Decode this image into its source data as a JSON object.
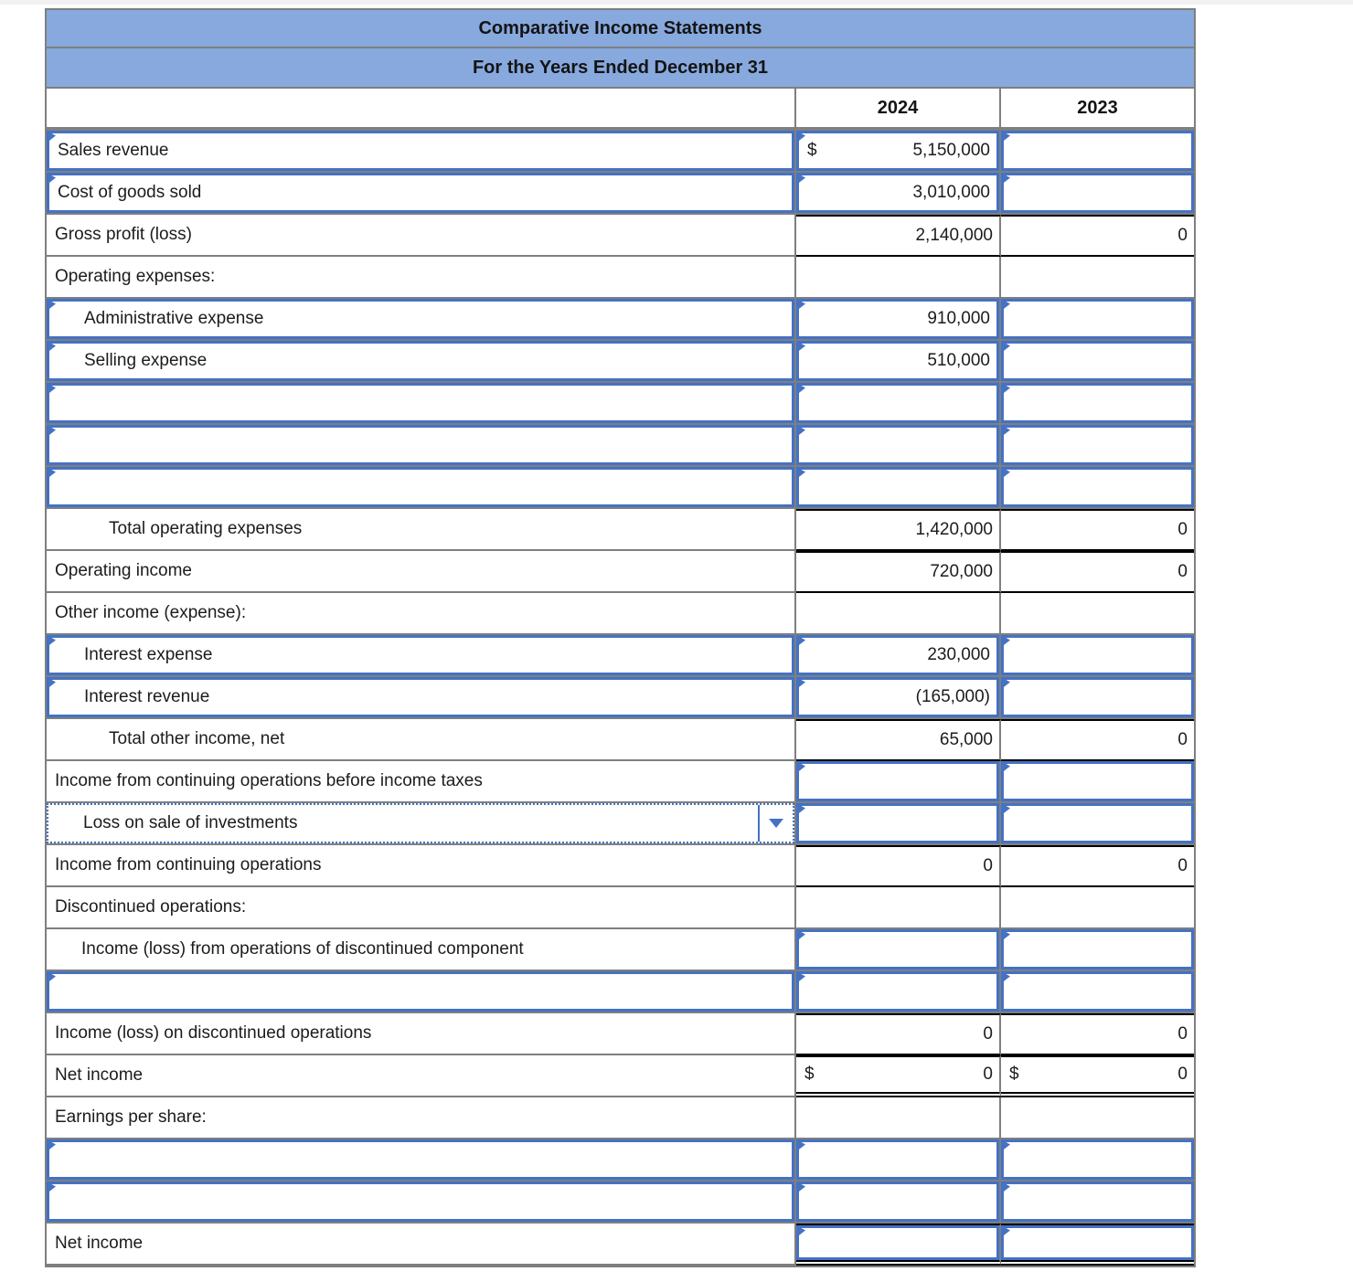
{
  "table": {
    "title": "Comparative Income Statements",
    "subtitle": "For the Years Ended December 31",
    "columns": [
      "2024",
      "2023"
    ],
    "rows": [
      {
        "label": "Sales revenue",
        "indent": 0,
        "lt": "input",
        "c24": {
          "t": "input",
          "v": "5,150,000",
          "d": "$"
        },
        "c23": {
          "t": "input",
          "v": ""
        }
      },
      {
        "label": "Cost of goods sold",
        "indent": 0,
        "lt": "input",
        "c24": {
          "t": "input",
          "v": "3,010,000"
        },
        "c23": {
          "t": "input",
          "v": ""
        }
      },
      {
        "label": "Gross profit (loss)",
        "indent": 0,
        "lt": "plain",
        "rule": "black",
        "c24": {
          "t": "calc",
          "v": "2,140,000"
        },
        "c23": {
          "t": "calc",
          "v": "0"
        }
      },
      {
        "label": "Operating expenses:",
        "indent": 0,
        "lt": "plain",
        "c24": {
          "t": "plain"
        },
        "c23": {
          "t": "plain"
        }
      },
      {
        "label": "Administrative expense",
        "indent": 1,
        "lt": "input",
        "c24": {
          "t": "input",
          "v": "910,000"
        },
        "c23": {
          "t": "input",
          "v": ""
        }
      },
      {
        "label": "Selling expense",
        "indent": 1,
        "lt": "input",
        "c24": {
          "t": "input",
          "v": "510,000"
        },
        "c23": {
          "t": "input",
          "v": ""
        }
      },
      {
        "label": "",
        "indent": 0,
        "lt": "input",
        "c24": {
          "t": "input",
          "v": ""
        },
        "c23": {
          "t": "input",
          "v": ""
        }
      },
      {
        "label": "",
        "indent": 0,
        "lt": "input",
        "c24": {
          "t": "input",
          "v": ""
        },
        "c23": {
          "t": "input",
          "v": ""
        }
      },
      {
        "label": "",
        "indent": 0,
        "lt": "input",
        "c24": {
          "t": "input",
          "v": ""
        },
        "c23": {
          "t": "input",
          "v": ""
        }
      },
      {
        "label": "Total operating expenses",
        "indent": 2,
        "lt": "plain",
        "rule": "black",
        "c24": {
          "t": "calc",
          "v": "1,420,000"
        },
        "c23": {
          "t": "calc",
          "v": "0"
        }
      },
      {
        "label": "Operating income",
        "indent": 0,
        "lt": "plain",
        "rule": "black",
        "c24": {
          "t": "calc",
          "v": "720,000"
        },
        "c23": {
          "t": "calc",
          "v": "0"
        }
      },
      {
        "label": "Other income (expense):",
        "indent": 0,
        "lt": "plain",
        "c24": {
          "t": "plain"
        },
        "c23": {
          "t": "plain"
        }
      },
      {
        "label": "Interest expense",
        "indent": 1,
        "lt": "input",
        "c24": {
          "t": "input",
          "v": "230,000"
        },
        "c23": {
          "t": "input",
          "v": ""
        }
      },
      {
        "label": "Interest revenue",
        "indent": 1,
        "lt": "input",
        "c24": {
          "t": "input",
          "v": "(165,000)"
        },
        "c23": {
          "t": "input",
          "v": ""
        }
      },
      {
        "label": "Total other income, net",
        "indent": 2,
        "lt": "plain",
        "rule": "black",
        "c24": {
          "t": "calc",
          "v": "65,000"
        },
        "c23": {
          "t": "calc",
          "v": "0"
        }
      },
      {
        "label": "Income from continuing operations before income taxes",
        "indent": 0,
        "lt": "plain",
        "c24": {
          "t": "input",
          "v": ""
        },
        "c23": {
          "t": "input",
          "v": ""
        }
      },
      {
        "label": "Loss on sale of investments",
        "indent": 1,
        "lt": "dropdown",
        "c24": {
          "t": "input",
          "v": ""
        },
        "c23": {
          "t": "input",
          "v": ""
        }
      },
      {
        "label": "Income from continuing operations",
        "indent": 0,
        "lt": "plain",
        "rule": "black",
        "c24": {
          "t": "calc",
          "v": "0"
        },
        "c23": {
          "t": "calc",
          "v": "0"
        }
      },
      {
        "label": "Discontinued operations:",
        "indent": 0,
        "lt": "plain",
        "c24": {
          "t": "plain"
        },
        "c23": {
          "t": "plain"
        }
      },
      {
        "label": "Income (loss) from operations of discontinued component",
        "indent": 1,
        "lt": "plain",
        "c24": {
          "t": "input",
          "v": ""
        },
        "c23": {
          "t": "input",
          "v": ""
        }
      },
      {
        "label": "",
        "indent": 0,
        "lt": "input",
        "c24": {
          "t": "input",
          "v": ""
        },
        "c23": {
          "t": "input",
          "v": ""
        }
      },
      {
        "label": "Income (loss) on discontinued operations",
        "indent": 0,
        "lt": "plain",
        "rule": "black",
        "c24": {
          "t": "calc",
          "v": "0"
        },
        "c23": {
          "t": "calc",
          "v": "0"
        }
      },
      {
        "label": "Net income",
        "indent": 0,
        "lt": "plain",
        "rule": "double",
        "c24": {
          "t": "calc",
          "v": "0",
          "d": "$"
        },
        "c23": {
          "t": "calc",
          "v": "0",
          "d": "$"
        }
      },
      {
        "label": "Earnings per share:",
        "indent": 0,
        "lt": "plain",
        "c24": {
          "t": "plain"
        },
        "c23": {
          "t": "plain"
        }
      },
      {
        "label": "",
        "indent": 0,
        "lt": "input",
        "c24": {
          "t": "input",
          "v": ""
        },
        "c23": {
          "t": "input",
          "v": ""
        }
      },
      {
        "label": "",
        "indent": 0,
        "lt": "input",
        "c24": {
          "t": "input",
          "v": ""
        },
        "c23": {
          "t": "input",
          "v": ""
        }
      },
      {
        "label": "Net income",
        "indent": 0,
        "lt": "plain",
        "outer": "double",
        "c24": {
          "t": "input",
          "v": ""
        },
        "c23": {
          "t": "input",
          "v": ""
        }
      }
    ]
  },
  "colors": {
    "header_fill": "#87a9de",
    "grid_line": "#7f7f7f",
    "editable_border": "#4472c4",
    "rule_line": "#000000"
  }
}
